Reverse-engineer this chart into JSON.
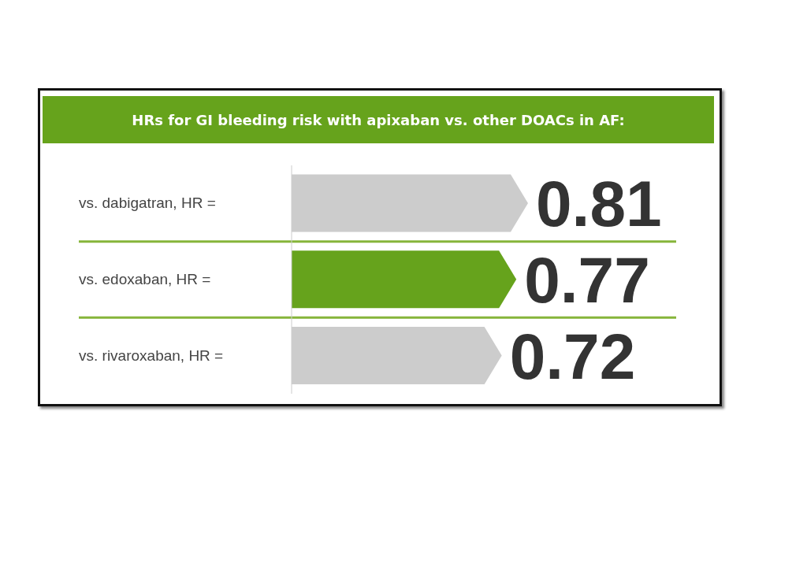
{
  "chart_data": {
    "type": "bar",
    "orientation": "horizontal",
    "title": "HRs for GI bleeding risk with apixaban vs. other DOACs in AF:",
    "categories": [
      "vs. dabigatran, HR =",
      "vs. edoxaban, HR =",
      "vs. rivaroxaban, HR ="
    ],
    "values": [
      0.81,
      0.77,
      0.72
    ],
    "colors": [
      "#cccccc",
      "#66a31c",
      "#cccccc"
    ],
    "tick_labels": false,
    "data_labels": true
  }
}
